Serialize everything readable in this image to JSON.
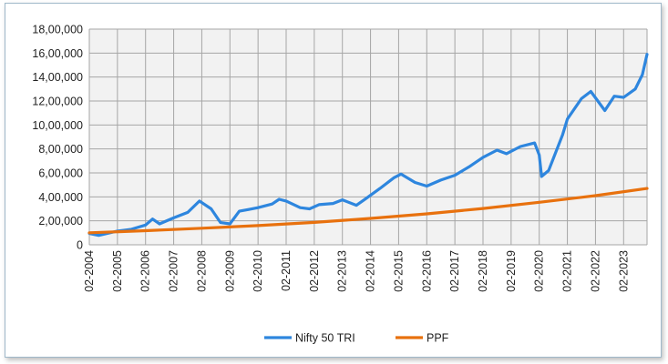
{
  "chart_data": {
    "type": "line",
    "title": "",
    "xlabel": "",
    "ylabel": "",
    "ylim": [
      0,
      1800000
    ],
    "y_ticks": [
      0,
      200000,
      400000,
      600000,
      800000,
      1000000,
      1200000,
      1400000,
      1600000,
      1800000
    ],
    "y_tick_labels": [
      "0",
      "2,00,000",
      "4,00,000",
      "6,00,000",
      "8,00,000",
      "10,00,000",
      "12,00,000",
      "14,00,000",
      "16,00,000",
      "18,00,000"
    ],
    "x_tick_labels": [
      "02-2004",
      "02-2005",
      "02-2006",
      "02-2007",
      "02-2008",
      "02-2009",
      "02-2010",
      "02-2011",
      "02-2012",
      "02-2013",
      "02-2014",
      "02-2015",
      "02-2016",
      "02-2017",
      "02-2018",
      "02-2019",
      "02-2020",
      "02-2021",
      "02-2022",
      "02-2023"
    ],
    "xlim": [
      "02-2004",
      "12-2023"
    ],
    "grid": true,
    "legend_position": "bottom",
    "colors": {
      "plot_bg": "#f2f2f2",
      "grid": "#a6a6a6"
    },
    "series": [
      {
        "name": "Nifty 50 TRI",
        "color": "#2e86de",
        "x": [
          "02-2004",
          "06-2004",
          "02-2005",
          "08-2005",
          "02-2006",
          "05-2006",
          "08-2006",
          "02-2007",
          "08-2007",
          "01-2008",
          "06-2008",
          "10-2008",
          "02-2009",
          "06-2009",
          "10-2009",
          "02-2010",
          "08-2010",
          "11-2010",
          "02-2011",
          "08-2011",
          "12-2011",
          "04-2012",
          "10-2012",
          "02-2013",
          "08-2013",
          "12-2013",
          "06-2014",
          "12-2014",
          "03-2015",
          "09-2015",
          "02-2016",
          "08-2016",
          "02-2017",
          "08-2017",
          "02-2018",
          "08-2018",
          "12-2018",
          "06-2019",
          "12-2019",
          "02-2020",
          "03-2020",
          "06-2020",
          "12-2020",
          "02-2021",
          "08-2021",
          "12-2021",
          "06-2022",
          "10-2022",
          "02-2023",
          "07-2023",
          "10-2023",
          "12-2023"
        ],
        "values": [
          95000,
          78000,
          115000,
          130000,
          165000,
          215000,
          175000,
          225000,
          270000,
          365000,
          300000,
          185000,
          175000,
          280000,
          295000,
          310000,
          340000,
          380000,
          365000,
          310000,
          300000,
          335000,
          345000,
          375000,
          330000,
          385000,
          470000,
          560000,
          590000,
          520000,
          490000,
          540000,
          580000,
          650000,
          730000,
          790000,
          760000,
          820000,
          850000,
          750000,
          570000,
          620000,
          920000,
          1050000,
          1220000,
          1280000,
          1120000,
          1240000,
          1230000,
          1300000,
          1420000,
          1590000
        ]
      },
      {
        "name": "PPF",
        "color": "#e8710e",
        "x": [
          "02-2004",
          "02-2006",
          "02-2008",
          "02-2010",
          "02-2012",
          "02-2014",
          "02-2016",
          "02-2018",
          "02-2020",
          "02-2022",
          "12-2023"
        ],
        "values": [
          100000,
          118000,
          138000,
          160000,
          187000,
          220000,
          258000,
          303000,
          355000,
          410000,
          470000
        ]
      }
    ]
  }
}
